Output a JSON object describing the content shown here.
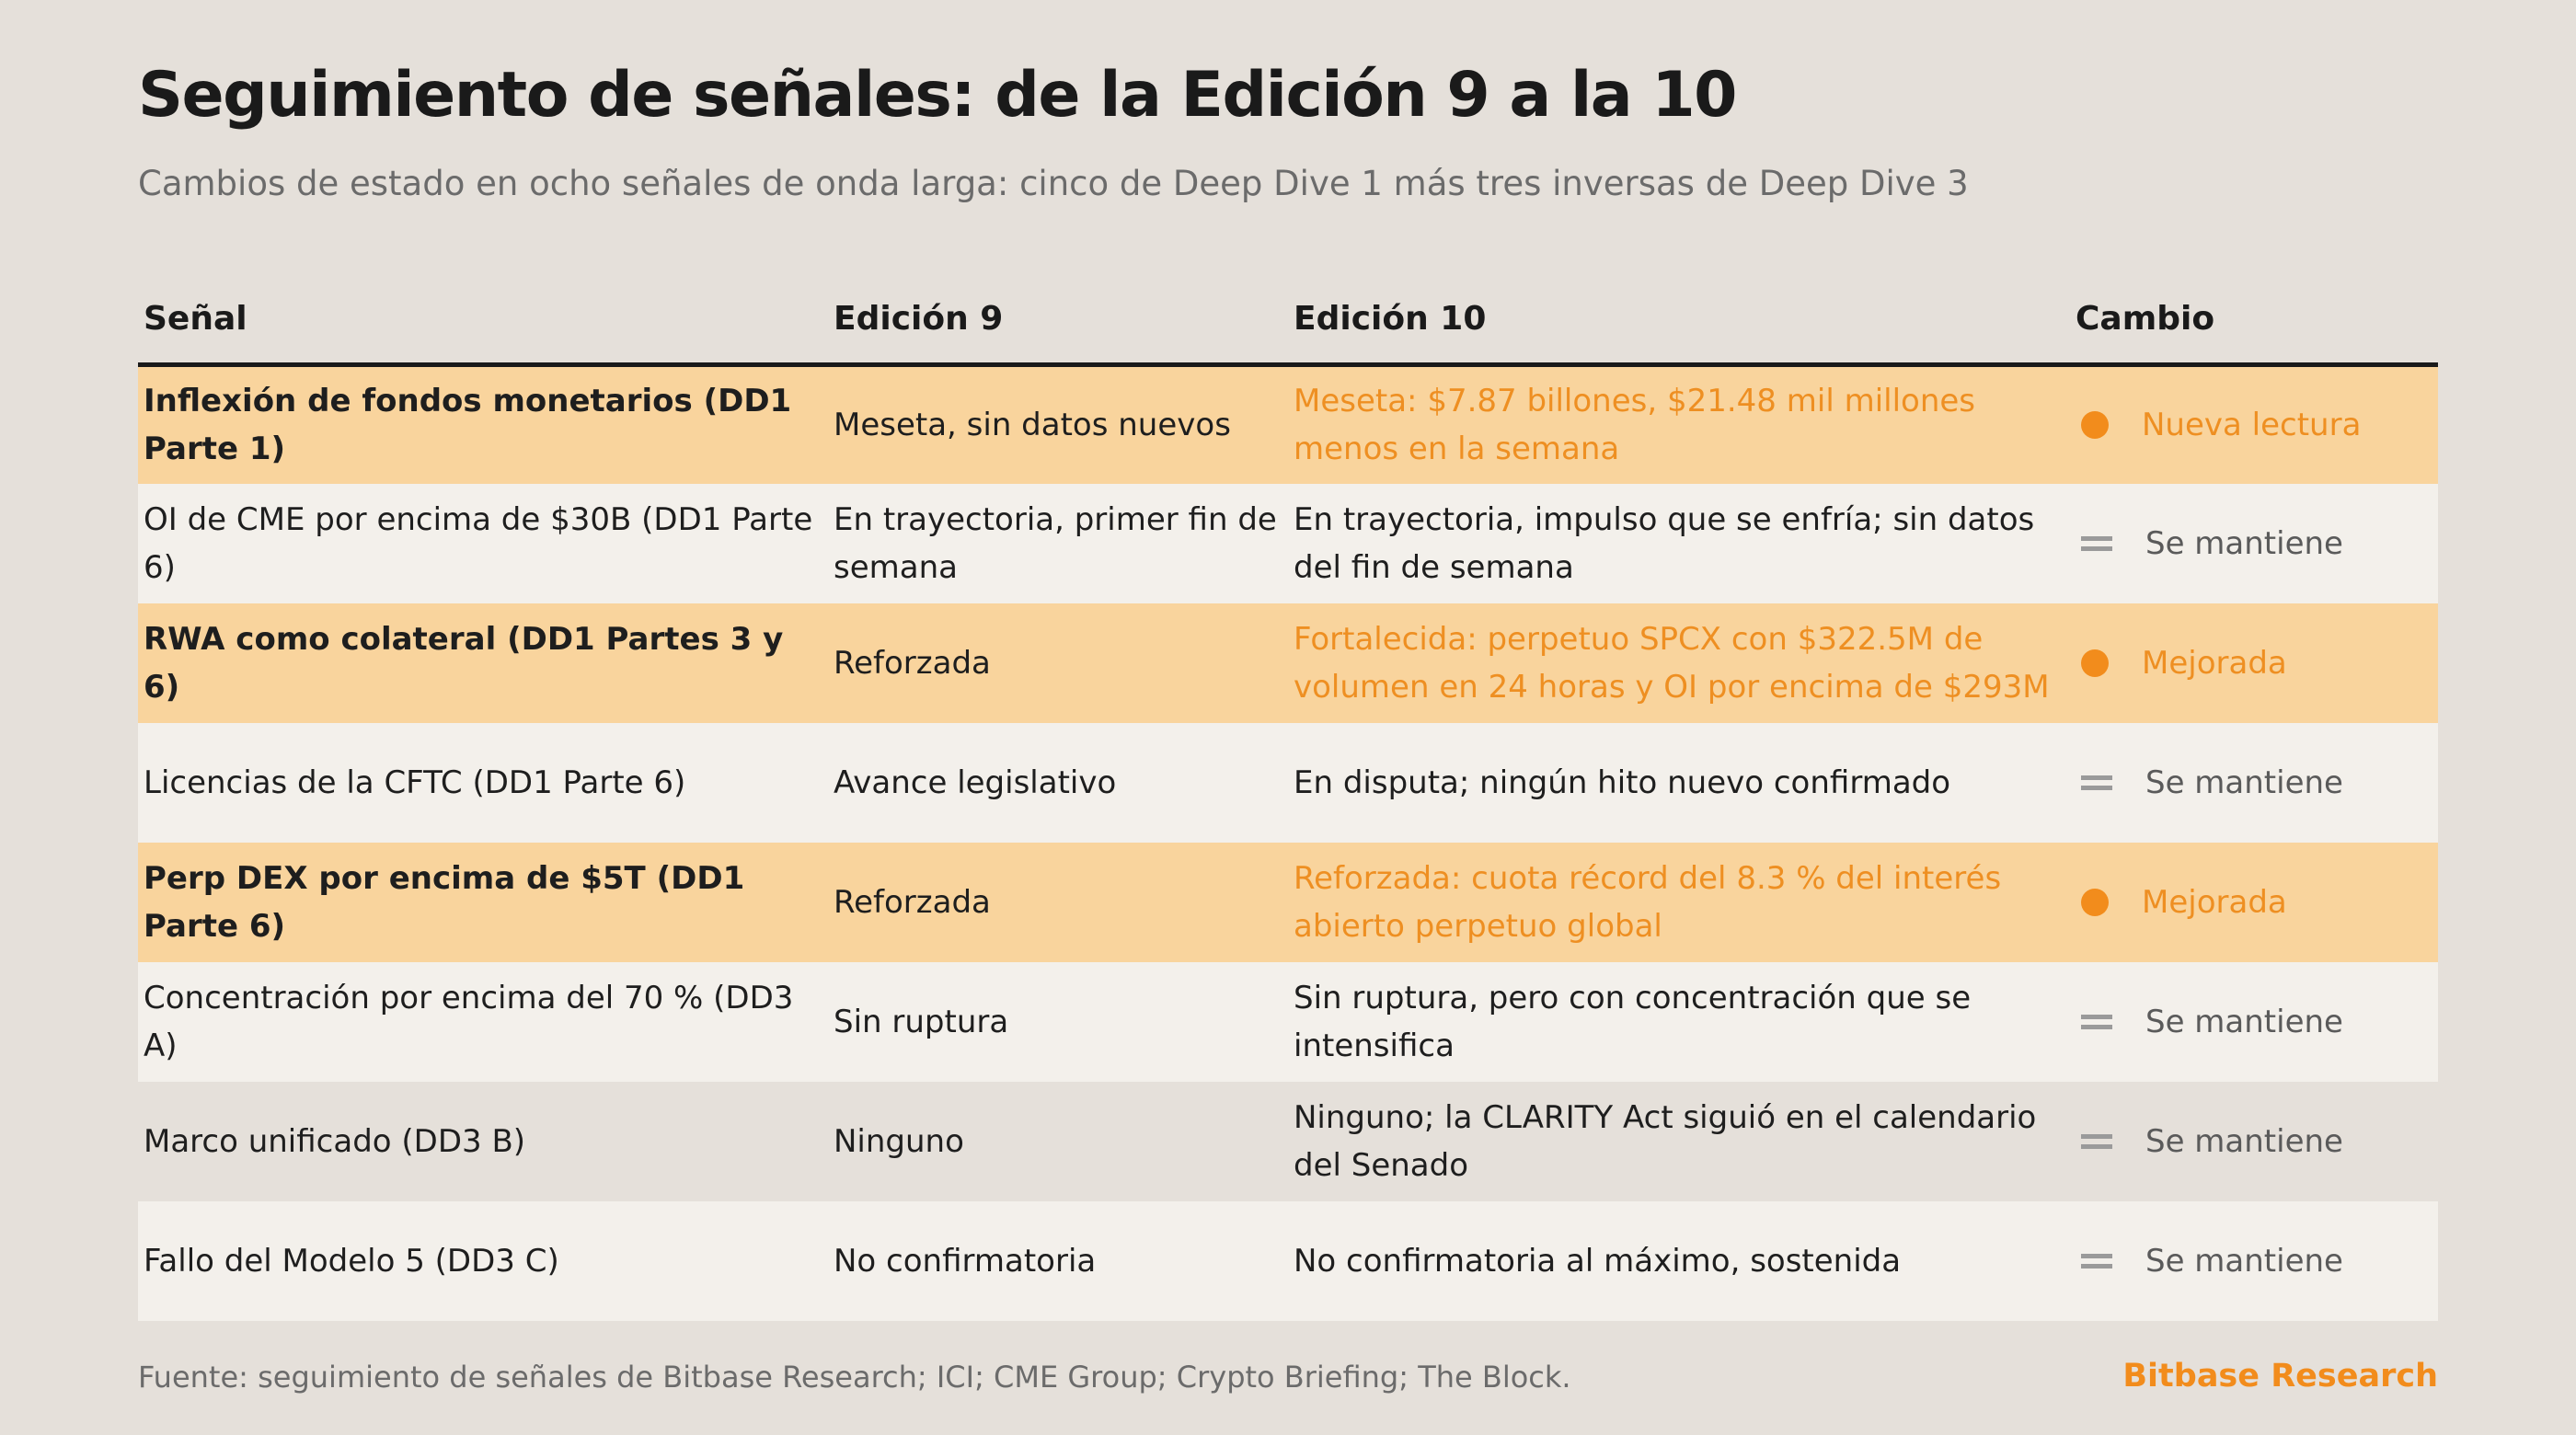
{
  "title": "Seguimiento de señales: de la Edición 9 a la 10",
  "subtitle": "Cambios de estado en ocho señales de onda larga: cinco de Deep Dive 1 más tres inversas de Deep Dive 3",
  "table": {
    "headers": [
      "Señal",
      "Edición 9",
      "Edición 10",
      "Cambio"
    ],
    "rows": [
      {
        "signal": "Inflexión de fondos monetarios (DD1 Parte 1)",
        "edition9": "Meseta, sin datos nuevos",
        "edition10": "Meseta: $7.87 billones, $21.48 mil millones menos en la semana",
        "change": "Nueva lectura",
        "change_icon": "dot-icon"
      },
      {
        "signal": "OI de CME por encima de $30B (DD1 Parte 6)",
        "edition9": "En trayectoria, primer fin de semana",
        "edition10": "En trayectoria, impulso que se enfría; sin datos del fin de semana",
        "change": "Se mantiene",
        "change_icon": "equals-icon"
      },
      {
        "signal": "RWA como colateral (DD1 Partes 3 y 6)",
        "edition9": "Reforzada",
        "edition10": "Fortalecida: perpetuo SPCX con $322.5M de volumen en 24 horas y OI por encima de $293M",
        "change": "Mejorada",
        "change_icon": "dot-icon"
      },
      {
        "signal": "Licencias de la CFTC (DD1 Parte 6)",
        "edition9": "Avance legislativo",
        "edition10": "En disputa; ningún hito nuevo confirmado",
        "change": "Se mantiene",
        "change_icon": "equals-icon"
      },
      {
        "signal": "Perp DEX por encima de $5T (DD1 Parte 6)",
        "edition9": "Reforzada",
        "edition10": "Reforzada: cuota récord del 8.3 % del interés abierto perpetuo global",
        "change": "Mejorada",
        "change_icon": "dot-icon"
      },
      {
        "signal": "Concentración por encima del 70 % (DD3 A)",
        "edition9": "Sin ruptura",
        "edition10": "Sin ruptura, pero con concentración que se intensifica",
        "change": "Se mantiene",
        "change_icon": "equals-icon"
      },
      {
        "signal": "Marco unificado (DD3 B)",
        "edition9": "Ninguno",
        "edition10": "Ninguno; la CLARITY Act siguió en el calendario del Senado",
        "change": "Se mantiene",
        "change_icon": "equals-icon"
      },
      {
        "signal": "Fallo del Modelo 5 (DD3 C)",
        "edition9": "No confirmatoria",
        "edition10": "No confirmatoria al máximo, sostenida",
        "change": "Se mantiene",
        "change_icon": "equals-icon"
      }
    ]
  },
  "footer": {
    "source": "Fuente: seguimiento de señales de Bitbase Research; ICI; CME Group; Crypto Briefing; The Block.",
    "brand": "Bitbase Research"
  },
  "colors": {
    "background": "#E5E0DA",
    "highlight_row": "#F9D49D",
    "light_row": "#F3F0EB",
    "accent": "#F28C1C",
    "neutral_icon": "#9A9A9A"
  }
}
